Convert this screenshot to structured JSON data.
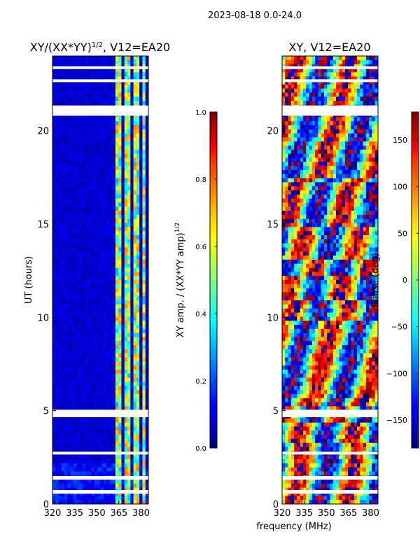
{
  "figure": {
    "suptitle": "2023-08-18 0.0-24.0",
    "xlabel": "frequency (MHz)"
  },
  "chart_data": [
    {
      "type": "heatmap",
      "title": "XY/(XX*YY)",
      "title_exponent": "1/2",
      "title_suffix": ", V12=EA20",
      "xlabel": "",
      "ylabel": "UT (hours)",
      "xlim": [
        320,
        385
      ],
      "ylim": [
        0,
        24
      ],
      "xticks": [
        "320",
        "335",
        "350",
        "365",
        "380"
      ],
      "xtick_values": [
        320,
        335,
        350,
        365,
        380
      ],
      "yticks": [
        "0",
        "5",
        "10",
        "15",
        "20"
      ],
      "ytick_values": [
        0,
        5,
        10,
        15,
        20
      ],
      "colorbar": {
        "label": "XY amp. / (XX*YY amp)",
        "label_exponent": "1/2",
        "range": [
          0.0,
          1.0
        ],
        "ticks": [
          "0.0",
          "0.2",
          "0.4",
          "0.6",
          "0.8",
          "1.0"
        ],
        "tick_values": [
          0.0,
          0.2,
          0.4,
          0.6,
          0.8,
          1.0
        ],
        "colormap": "jet"
      },
      "flagged_hours": [
        [
          0.55,
          0.75
        ],
        [
          1.3,
          1.5
        ],
        [
          2.65,
          2.8
        ],
        [
          4.65,
          5.05
        ],
        [
          20.8,
          21.35
        ],
        [
          22.6,
          22.75
        ],
        [
          23.3,
          23.45
        ]
      ],
      "data_description": "amplitude ratio near 0 across most of band; elevated 0.3-0.8 in channels 363-382 MHz"
    },
    {
      "type": "heatmap",
      "title": "XY, V12=EA20",
      "xlabel": "",
      "ylabel": "",
      "xlim": [
        320,
        385
      ],
      "ylim": [
        0,
        24
      ],
      "xticks": [
        "320",
        "335",
        "350",
        "365",
        "380"
      ],
      "xtick_values": [
        320,
        335,
        350,
        365,
        380
      ],
      "yticks": [
        "0",
        "5",
        "10",
        "15",
        "20"
      ],
      "ytick_values": [
        0,
        5,
        10,
        15,
        20
      ],
      "colorbar": {
        "label": "Phase (deg)",
        "range": [
          -180,
          180
        ],
        "ticks": [
          "−150",
          "−100",
          "−50",
          "0",
          "50",
          "100",
          "150"
        ],
        "tick_values": [
          -150,
          -100,
          -50,
          0,
          50,
          100,
          150
        ],
        "colormap": "jet"
      },
      "flagged_hours": [
        [
          0.55,
          0.75
        ],
        [
          1.3,
          1.5
        ],
        [
          2.65,
          2.8
        ],
        [
          4.65,
          5.05
        ],
        [
          20.8,
          21.35
        ],
        [
          22.6,
          22.75
        ],
        [
          23.3,
          23.45
        ]
      ],
      "data_description": "XY phase in degrees, wrapping -180..180 across time and frequency"
    }
  ]
}
